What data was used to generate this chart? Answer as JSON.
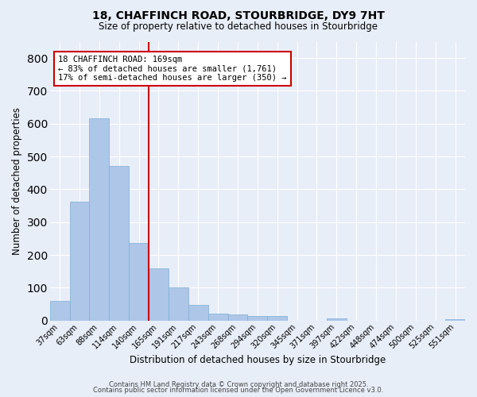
{
  "title1": "18, CHAFFINCH ROAD, STOURBRIDGE, DY9 7HT",
  "title2": "Size of property relative to detached houses in Stourbridge",
  "xlabel": "Distribution of detached houses by size in Stourbridge",
  "ylabel": "Number of detached properties",
  "categories": [
    "37sqm",
    "63sqm",
    "88sqm",
    "114sqm",
    "140sqm",
    "165sqm",
    "191sqm",
    "217sqm",
    "243sqm",
    "268sqm",
    "294sqm",
    "320sqm",
    "345sqm",
    "371sqm",
    "397sqm",
    "422sqm",
    "448sqm",
    "474sqm",
    "500sqm",
    "525sqm",
    "551sqm"
  ],
  "values": [
    60,
    362,
    617,
    470,
    237,
    160,
    100,
    47,
    22,
    18,
    14,
    13,
    0,
    0,
    7,
    0,
    0,
    0,
    0,
    0,
    5
  ],
  "bar_color": "#aec6e8",
  "bar_edgecolor": "#7aafd4",
  "vline_x": 4.5,
  "vline_color": "#cc0000",
  "annotation_text": "18 CHAFFINCH ROAD: 169sqm\n← 83% of detached houses are smaller (1,761)\n17% of semi-detached houses are larger (350) →",
  "annotation_box_color": "#cc0000",
  "background_color": "#e8eef8",
  "grid_color": "#ffffff",
  "ylim": [
    0,
    850
  ],
  "yticks": [
    0,
    100,
    200,
    300,
    400,
    500,
    600,
    700,
    800
  ],
  "footer1": "Contains HM Land Registry data © Crown copyright and database right 2025.",
  "footer2": "Contains public sector information licensed under the Open Government Licence v3.0."
}
